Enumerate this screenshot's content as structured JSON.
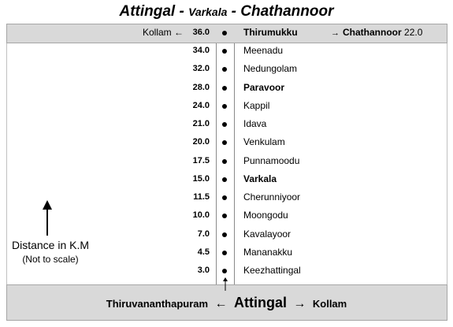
{
  "title": {
    "part1": "Attingal - ",
    "part2": "Varkala",
    "part3": " - Chathannoor"
  },
  "top": {
    "left_place": "Kollam",
    "left_arrow": "←",
    "distance": "36.0",
    "center_place": "Thirumukku",
    "right_arrow": "→",
    "right_place": "Chathannoor",
    "right_distance": "22.0"
  },
  "stops": [
    {
      "distance": "34.0",
      "name": "Meenadu",
      "bold": false
    },
    {
      "distance": "32.0",
      "name": "Nedungolam",
      "bold": false
    },
    {
      "distance": "28.0",
      "name": "Paravoor",
      "bold": true
    },
    {
      "distance": "24.0",
      "name": "Kappil",
      "bold": false
    },
    {
      "distance": "21.0",
      "name": "Idava",
      "bold": false
    },
    {
      "distance": "20.0",
      "name": "Venkulam",
      "bold": false
    },
    {
      "distance": "17.5",
      "name": "Punnamoodu",
      "bold": false
    },
    {
      "distance": "15.0",
      "name": "Varkala",
      "bold": true
    },
    {
      "distance": "11.5",
      "name": "Cherunniyoor",
      "bold": false
    },
    {
      "distance": "10.0",
      "name": "Moongodu",
      "bold": false
    },
    {
      "distance": "7.0",
      "name": "Kavalayoor",
      "bold": false
    },
    {
      "distance": "4.5",
      "name": "Mananakku",
      "bold": false
    },
    {
      "distance": "3.0",
      "name": "Keezhattingal",
      "bold": false
    }
  ],
  "bottom": {
    "left_place": "Thiruvananthapuram",
    "left_arrow": "←",
    "center_place": "Attingal",
    "right_arrow": "→",
    "right_place": "Kollam"
  },
  "note": {
    "line1": "Distance in K.M",
    "line2": "(Not to scale)"
  },
  "colors": {
    "band": "#d9d9d9",
    "band_border": "#a6a6a6",
    "road_border": "#8a8a8a"
  }
}
